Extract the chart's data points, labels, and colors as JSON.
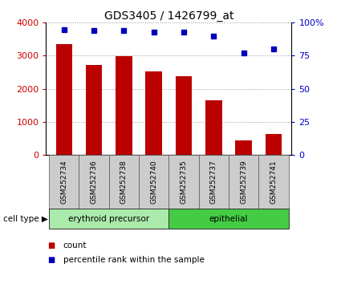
{
  "title": "GDS3405 / 1426799_at",
  "samples": [
    "GSM252734",
    "GSM252736",
    "GSM252738",
    "GSM252740",
    "GSM252735",
    "GSM252737",
    "GSM252739",
    "GSM252741"
  ],
  "counts": [
    3340,
    2720,
    2980,
    2530,
    2390,
    1640,
    430,
    640
  ],
  "percentiles": [
    95,
    94,
    94,
    93,
    93,
    90,
    77,
    80
  ],
  "ylim_left": [
    0,
    4000
  ],
  "ylim_right": [
    0,
    100
  ],
  "yticks_left": [
    0,
    1000,
    2000,
    3000,
    4000
  ],
  "yticks_right": [
    0,
    25,
    50,
    75,
    100
  ],
  "bar_color": "#bb0000",
  "dot_color": "#0000bb",
  "cell_types": [
    {
      "label": "erythroid precursor",
      "start": 0,
      "end": 4,
      "color": "#aaeaaa"
    },
    {
      "label": "epithelial",
      "start": 4,
      "end": 8,
      "color": "#44cc44"
    }
  ],
  "cell_type_label": "cell type",
  "legend_count": "count",
  "legend_percentile": "percentile rank within the sample",
  "left_tick_color": "#cc0000",
  "right_tick_color": "#0000cc",
  "grid_color": "#999999",
  "xticklabel_bg": "#cccccc",
  "plot_bg": "#ffffff"
}
